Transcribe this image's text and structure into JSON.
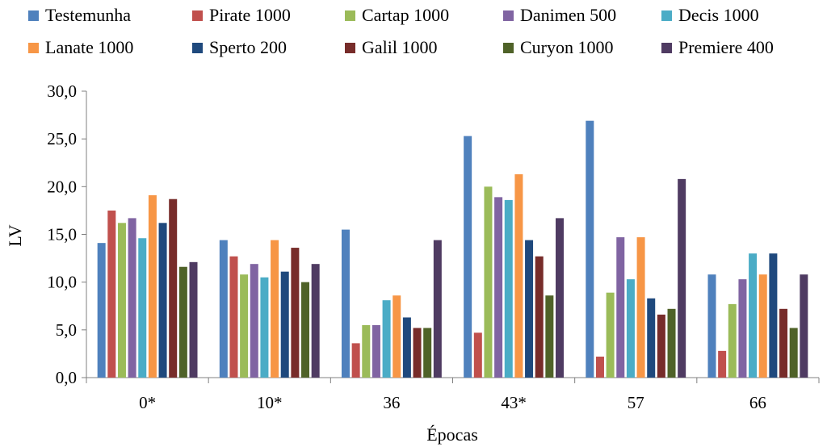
{
  "chart_data": {
    "type": "bar",
    "title": "",
    "xlabel": "Épocas",
    "ylabel": "LV",
    "ylim": [
      0,
      30
    ],
    "yticks": [
      "0,0",
      "5,0",
      "10,0",
      "15,0",
      "20,0",
      "25,0",
      "30,0"
    ],
    "categories": [
      "0*",
      "10*",
      "36",
      "43*",
      "57",
      "66"
    ],
    "legend_position": "top",
    "grid": false,
    "series": [
      {
        "name": "Testemunha",
        "color": "#4F81BD",
        "values": [
          14.1,
          14.4,
          15.5,
          25.3,
          26.9,
          10.8
        ]
      },
      {
        "name": "Pirate 1000",
        "color": "#C0504D",
        "values": [
          17.5,
          12.7,
          3.6,
          4.7,
          2.2,
          2.8
        ]
      },
      {
        "name": "Cartap 1000",
        "color": "#9BBB59",
        "values": [
          16.2,
          10.8,
          5.5,
          20.0,
          8.9,
          7.7
        ]
      },
      {
        "name": "Danimen 500",
        "color": "#8064A2",
        "values": [
          16.7,
          11.9,
          5.5,
          18.9,
          14.7,
          10.3
        ]
      },
      {
        "name": "Decis 1000",
        "color": "#4BACC6",
        "values": [
          14.6,
          10.5,
          8.1,
          18.6,
          10.3,
          13.0
        ]
      },
      {
        "name": "Lanate 1000",
        "color": "#F79646",
        "values": [
          19.1,
          14.4,
          8.6,
          21.3,
          14.7,
          10.8
        ]
      },
      {
        "name": "Sperto 200",
        "color": "#1F497D",
        "values": [
          16.2,
          11.1,
          6.3,
          14.4,
          8.3,
          13.0
        ]
      },
      {
        "name": "Galil 1000",
        "color": "#772C2A",
        "values": [
          18.7,
          13.6,
          5.2,
          12.7,
          6.6,
          7.2
        ]
      },
      {
        "name": "Curyon 1000",
        "color": "#4F6228",
        "values": [
          11.6,
          10.0,
          5.2,
          8.6,
          7.2,
          5.2
        ]
      },
      {
        "name": "Premiere 400",
        "color": "#4F3B62",
        "values": [
          12.1,
          11.9,
          14.4,
          16.7,
          20.8,
          10.8
        ]
      }
    ]
  }
}
